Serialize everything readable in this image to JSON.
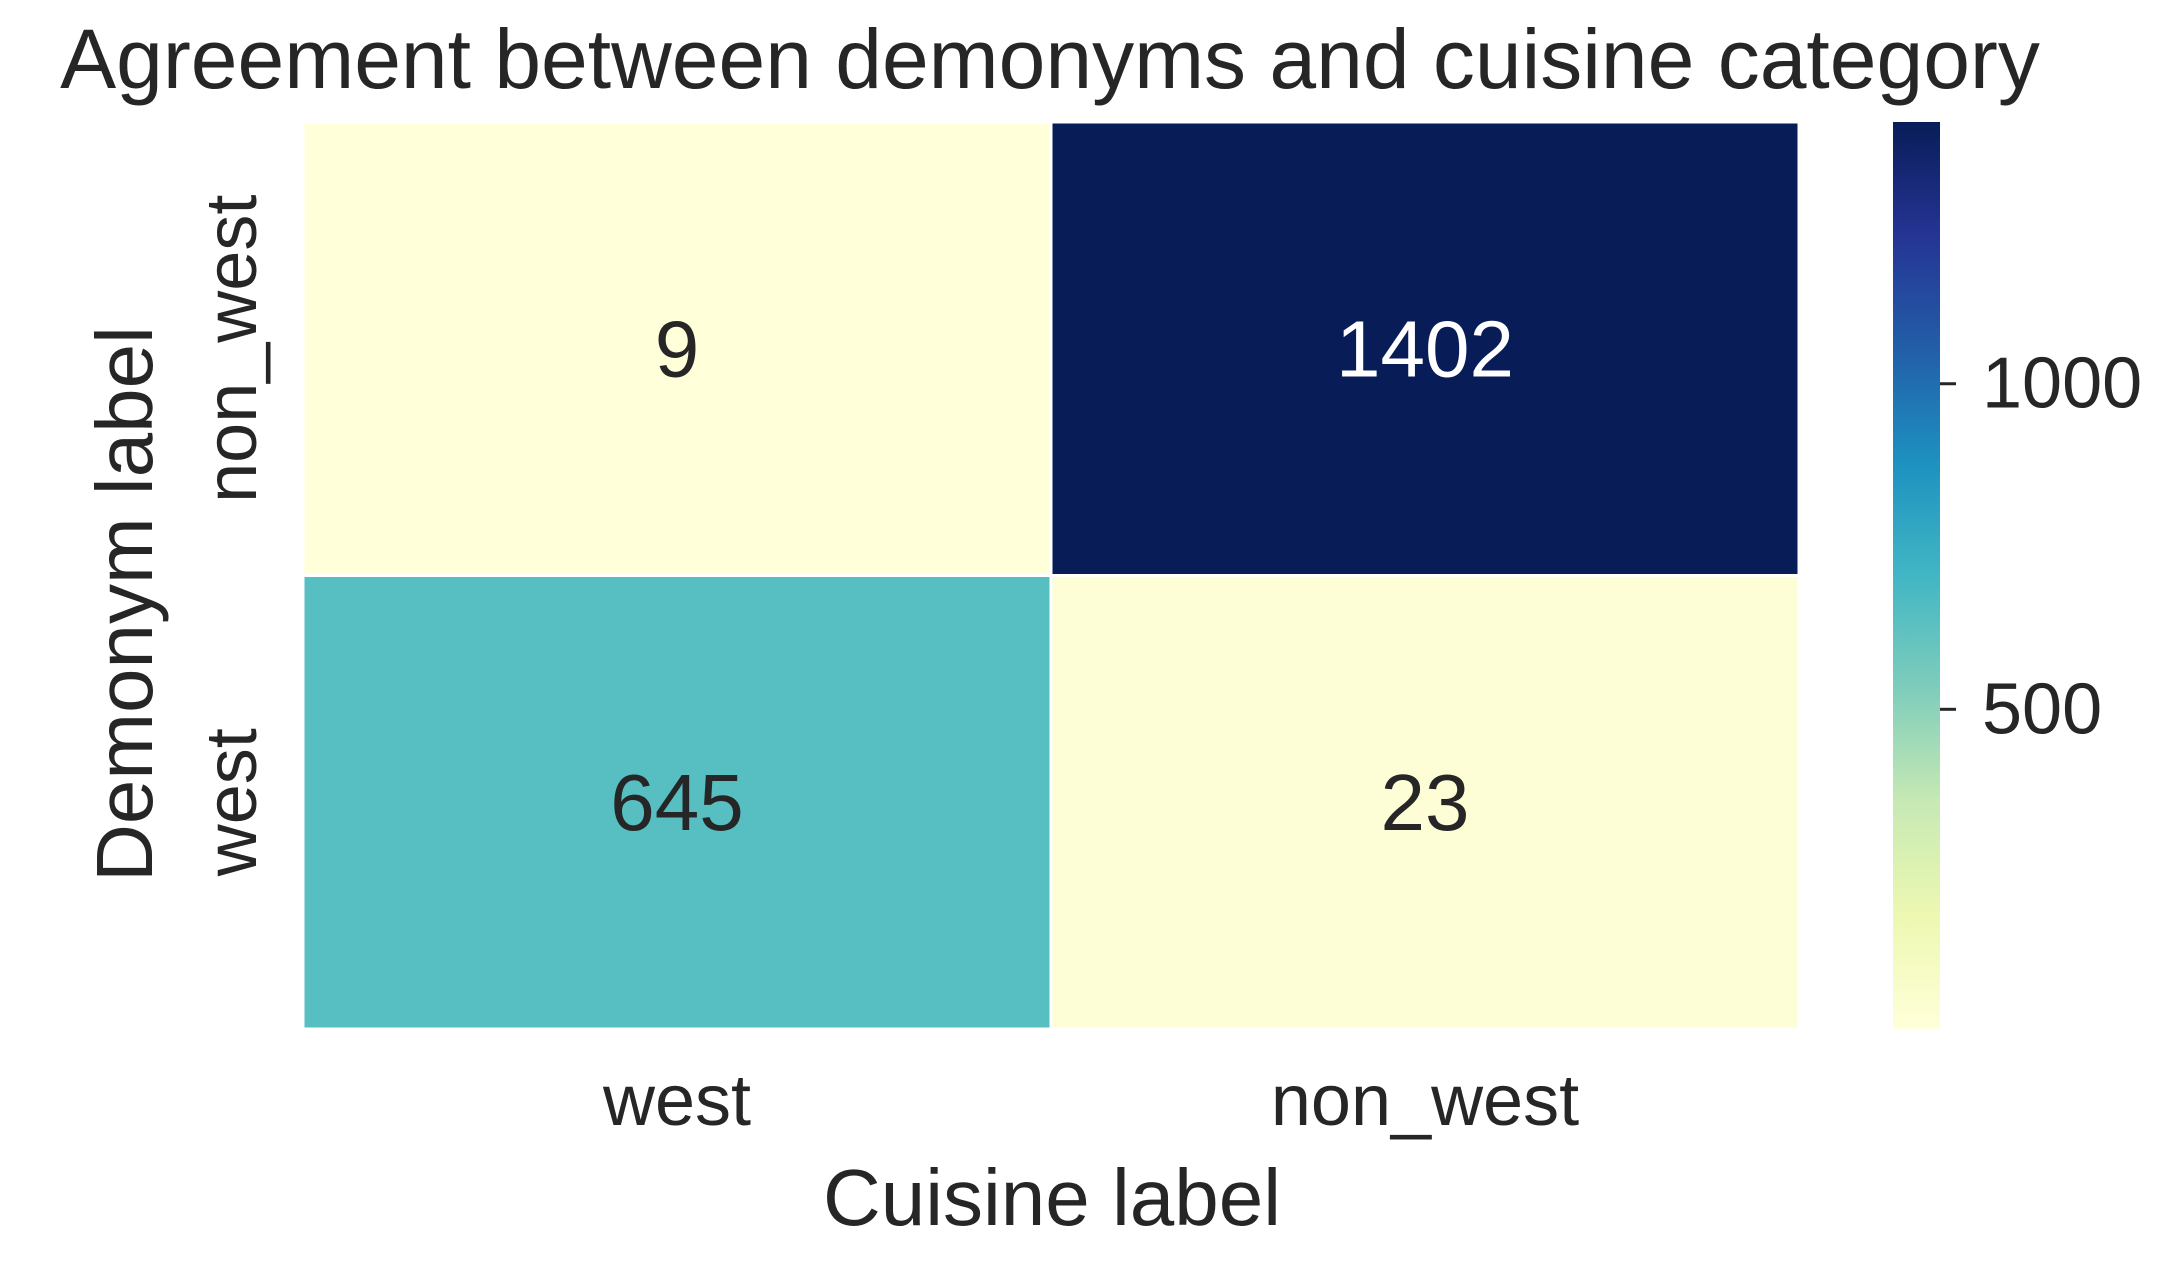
{
  "chart_data": {
    "type": "heatmap",
    "title": "Agreement between demonyms and cuisine category",
    "xlabel": "Cuisine label",
    "ylabel": "Demonym label",
    "x_categories": [
      "west",
      "non_west"
    ],
    "y_categories": [
      "non_west",
      "west"
    ],
    "values": [
      [
        9,
        1402
      ],
      [
        645,
        23
      ]
    ],
    "colormap": "YlGnBu",
    "colorbar": {
      "vmin": 9,
      "vmax": 1402,
      "ticks": [
        500,
        1000
      ],
      "tick_labels": [
        "500",
        "1000"
      ]
    },
    "annot_colors": {
      "dark_text": "#262626",
      "light_text": "#ffffff"
    },
    "grid": false
  }
}
